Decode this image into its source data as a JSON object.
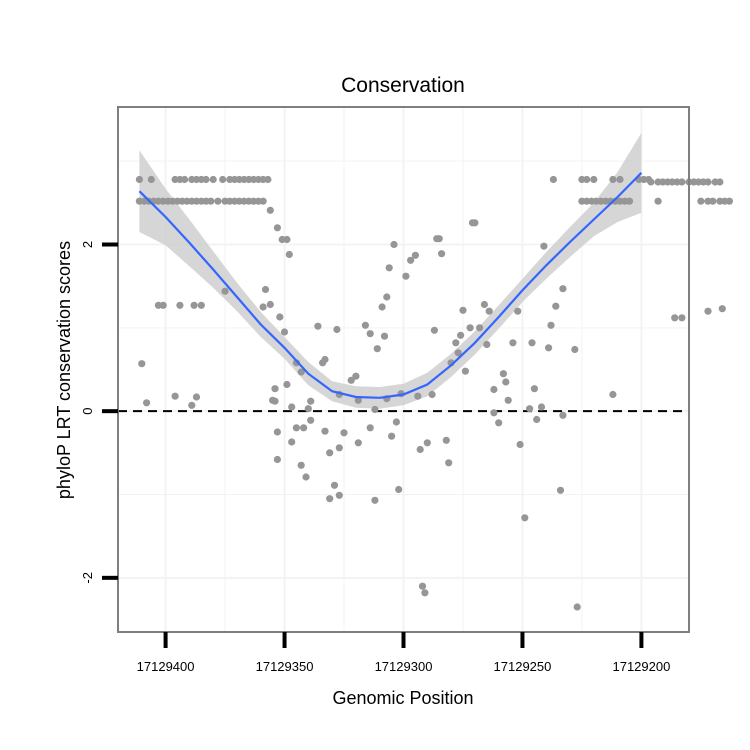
{
  "chart_data": {
    "type": "scatter",
    "title": "Conservation",
    "xlabel": "Genomic Position",
    "ylabel": "phyloP LRT conservation scores",
    "x_reversed": true,
    "xlim": [
      17129420,
      17129180
    ],
    "ylim": [
      -2.65,
      3.65
    ],
    "xticks": [
      17129400,
      17129350,
      17129300,
      17129250,
      17129200
    ],
    "xtick_labels": [
      "17129400",
      "17129350",
      "17129300",
      "17129250",
      "17129200"
    ],
    "yticks": [
      -2,
      0,
      2
    ],
    "ytick_labels": [
      "-2",
      "0",
      "2"
    ],
    "reference_line": {
      "y": 0,
      "style": "dashed"
    },
    "colors": {
      "points": "#969696",
      "smooth": "#3366ff",
      "band": "#cccccc",
      "panel_border": "#7f7f7f",
      "grid": "#f3f3f3"
    },
    "points": [
      [
        17129411,
        2.78
      ],
      [
        17129406,
        2.78
      ],
      [
        17129396,
        2.78
      ],
      [
        17129394,
        2.78
      ],
      [
        17129392,
        2.78
      ],
      [
        17129389,
        2.78
      ],
      [
        17129387,
        2.78
      ],
      [
        17129385,
        2.78
      ],
      [
        17129383,
        2.78
      ],
      [
        17129380,
        2.78
      ],
      [
        17129376,
        2.78
      ],
      [
        17129373,
        2.78
      ],
      [
        17129371,
        2.78
      ],
      [
        17129369,
        2.78
      ],
      [
        17129367,
        2.78
      ],
      [
        17129365,
        2.78
      ],
      [
        17129363,
        2.78
      ],
      [
        17129361,
        2.78
      ],
      [
        17129359,
        2.78
      ],
      [
        17129357,
        2.78
      ],
      [
        17129411,
        2.52
      ],
      [
        17129409,
        2.52
      ],
      [
        17129407,
        2.52
      ],
      [
        17129405,
        2.52
      ],
      [
        17129403,
        2.52
      ],
      [
        17129401,
        2.52
      ],
      [
        17129399,
        2.52
      ],
      [
        17129397,
        2.52
      ],
      [
        17129395,
        2.52
      ],
      [
        17129393,
        2.52
      ],
      [
        17129391,
        2.52
      ],
      [
        17129389,
        2.52
      ],
      [
        17129387,
        2.52
      ],
      [
        17129385,
        2.52
      ],
      [
        17129383,
        2.52
      ],
      [
        17129381,
        2.52
      ],
      [
        17129378,
        2.52
      ],
      [
        17129375,
        2.52
      ],
      [
        17129373,
        2.52
      ],
      [
        17129371,
        2.52
      ],
      [
        17129369,
        2.52
      ],
      [
        17129367,
        2.52
      ],
      [
        17129365,
        2.52
      ],
      [
        17129363,
        2.52
      ],
      [
        17129361,
        2.52
      ],
      [
        17129359,
        2.52
      ],
      [
        17129403,
        1.27
      ],
      [
        17129401,
        1.27
      ],
      [
        17129394,
        1.27
      ],
      [
        17129388,
        1.27
      ],
      [
        17129385,
        1.27
      ],
      [
        17129410,
        0.57
      ],
      [
        17129408,
        0.1
      ],
      [
        17129396,
        0.18
      ],
      [
        17129389,
        0.07
      ],
      [
        17129387,
        0.17
      ],
      [
        17129375,
        1.44
      ],
      [
        17129356,
        2.41
      ],
      [
        17129358,
        1.46
      ],
      [
        17129359,
        1.25
      ],
      [
        17129356,
        1.28
      ],
      [
        17129353,
        2.2
      ],
      [
        17129351,
        2.06
      ],
      [
        17129349,
        2.06
      ],
      [
        17129348,
        1.88
      ],
      [
        17129352,
        1.13
      ],
      [
        17129350,
        0.95
      ],
      [
        17129354,
        0.27
      ],
      [
        17129355,
        0.13
      ],
      [
        17129354,
        0.12
      ],
      [
        17129349,
        0.32
      ],
      [
        17129347,
        0.05
      ],
      [
        17129353,
        -0.25
      ],
      [
        17129353,
        -0.58
      ],
      [
        17129347,
        -0.37
      ],
      [
        17129345,
        0.58
      ],
      [
        17129343,
        0.47
      ],
      [
        17129345,
        -0.2
      ],
      [
        17129342,
        -0.2
      ],
      [
        17129343,
        -0.65
      ],
      [
        17129341,
        -0.79
      ],
      [
        17129340,
        0.03
      ],
      [
        17129339,
        0.12
      ],
      [
        17129339,
        -0.11
      ],
      [
        17129336,
        1.02
      ],
      [
        17129334,
        0.58
      ],
      [
        17129333,
        0.62
      ],
      [
        17129333,
        -0.24
      ],
      [
        17129331,
        -0.5
      ],
      [
        17129331,
        -1.05
      ],
      [
        17129329,
        -0.89
      ],
      [
        17129327,
        -1.01
      ],
      [
        17129327,
        0.2
      ],
      [
        17129327,
        -0.44
      ],
      [
        17129325,
        -0.26
      ],
      [
        17129328,
        0.98
      ],
      [
        17129322,
        0.37
      ],
      [
        17129320,
        0.42
      ],
      [
        17129319,
        0.13
      ],
      [
        17129319,
        -0.38
      ],
      [
        17129316,
        1.03
      ],
      [
        17129314,
        0.93
      ],
      [
        17129314,
        -0.2
      ],
      [
        17129312,
        0.02
      ],
      [
        17129312,
        -1.07
      ],
      [
        17129311,
        0.75
      ],
      [
        17129309,
        1.25
      ],
      [
        17129307,
        1.37
      ],
      [
        17129308,
        0.9
      ],
      [
        17129307,
        0.15
      ],
      [
        17129306,
        1.72
      ],
      [
        17129304,
        2.0
      ],
      [
        17129303,
        -0.13
      ],
      [
        17129305,
        -0.3
      ],
      [
        17129302,
        -0.94
      ],
      [
        17129301,
        0.21
      ],
      [
        17129299,
        1.62
      ],
      [
        17129297,
        1.81
      ],
      [
        17129295,
        1.87
      ],
      [
        17129294,
        0.18
      ],
      [
        17129293,
        -0.46
      ],
      [
        17129292,
        -2.1
      ],
      [
        17129291,
        -2.18
      ],
      [
        17129290,
        -0.38
      ],
      [
        17129288,
        0.2
      ],
      [
        17129287,
        0.97
      ],
      [
        17129286,
        2.07
      ],
      [
        17129285,
        2.07
      ],
      [
        17129284,
        1.89
      ],
      [
        17129282,
        -0.35
      ],
      [
        17129281,
        -0.62
      ],
      [
        17129280,
        0.58
      ],
      [
        17129278,
        0.82
      ],
      [
        17129277,
        0.7
      ],
      [
        17129276,
        0.91
      ],
      [
        17129275,
        1.21
      ],
      [
        17129274,
        0.48
      ],
      [
        17129272,
        1.0
      ],
      [
        17129271,
        2.26
      ],
      [
        17129270,
        2.26
      ],
      [
        17129268,
        1.0
      ],
      [
        17129266,
        1.28
      ],
      [
        17129265,
        0.8
      ],
      [
        17129264,
        1.2
      ],
      [
        17129262,
        -0.02
      ],
      [
        17129262,
        0.26
      ],
      [
        17129260,
        -0.14
      ],
      [
        17129258,
        0.45
      ],
      [
        17129257,
        0.35
      ],
      [
        17129256,
        0.13
      ],
      [
        17129254,
        0.82
      ],
      [
        17129251,
        -0.4
      ],
      [
        17129252,
        1.2
      ],
      [
        17129249,
        -1.28
      ],
      [
        17129247,
        0.03
      ],
      [
        17129246,
        0.82
      ],
      [
        17129245,
        0.27
      ],
      [
        17129244,
        -0.1
      ],
      [
        17129242,
        0.05
      ],
      [
        17129241,
        1.98
      ],
      [
        17129239,
        0.76
      ],
      [
        17129238,
        1.03
      ],
      [
        17129237,
        2.78
      ],
      [
        17129236,
        1.26
      ],
      [
        17129234,
        -0.95
      ],
      [
        17129233,
        -0.05
      ],
      [
        17129233,
        1.47
      ],
      [
        17129228,
        0.74
      ],
      [
        17129227,
        -2.35
      ],
      [
        17129225,
        2.78
      ],
      [
        17129223,
        2.78
      ],
      [
        17129220,
        2.78
      ],
      [
        17129212,
        2.78
      ],
      [
        17129209,
        2.78
      ],
      [
        17129201,
        2.78
      ],
      [
        17129199,
        2.78
      ],
      [
        17129197,
        2.78
      ],
      [
        17129225,
        2.52
      ],
      [
        17129223,
        2.52
      ],
      [
        17129221,
        2.52
      ],
      [
        17129219,
        2.52
      ],
      [
        17129217,
        2.52
      ],
      [
        17129215,
        2.52
      ],
      [
        17129213,
        2.52
      ],
      [
        17129211,
        2.52
      ],
      [
        17129209,
        2.52
      ],
      [
        17129207,
        2.52
      ],
      [
        17129205,
        2.52
      ],
      [
        17129193,
        2.52
      ],
      [
        17129196,
        2.75
      ],
      [
        17129193,
        2.75
      ],
      [
        17129191,
        2.75
      ],
      [
        17129189,
        2.75
      ],
      [
        17129187,
        2.75
      ],
      [
        17129185,
        2.75
      ],
      [
        17129183,
        2.75
      ],
      [
        17129180,
        2.75
      ],
      [
        17129178,
        2.75
      ],
      [
        17129176,
        2.75
      ],
      [
        17129174,
        2.75
      ],
      [
        17129172,
        2.75
      ],
      [
        17129169,
        2.75
      ],
      [
        17129167,
        2.75
      ],
      [
        17129175,
        2.52
      ],
      [
        17129172,
        2.52
      ],
      [
        17129170,
        2.52
      ],
      [
        17129167,
        2.52
      ],
      [
        17129165,
        2.52
      ],
      [
        17129163,
        2.52
      ],
      [
        17129212,
        0.2
      ],
      [
        17129186,
        1.12
      ],
      [
        17129183,
        1.12
      ],
      [
        17129172,
        1.2
      ],
      [
        17129166,
        1.23
      ]
    ],
    "smooth": [
      [
        17129411,
        2.64
      ],
      [
        17129400,
        2.33
      ],
      [
        17129390,
        2.02
      ],
      [
        17129380,
        1.7
      ],
      [
        17129370,
        1.37
      ],
      [
        17129360,
        1.04
      ],
      [
        17129350,
        0.76
      ],
      [
        17129340,
        0.45
      ],
      [
        17129330,
        0.24
      ],
      [
        17129320,
        0.17
      ],
      [
        17129310,
        0.16
      ],
      [
        17129300,
        0.2
      ],
      [
        17129290,
        0.32
      ],
      [
        17129280,
        0.55
      ],
      [
        17129270,
        0.82
      ],
      [
        17129260,
        1.13
      ],
      [
        17129250,
        1.45
      ],
      [
        17129240,
        1.75
      ],
      [
        17129230,
        2.03
      ],
      [
        17129220,
        2.3
      ],
      [
        17129210,
        2.57
      ],
      [
        17129200,
        2.86
      ]
    ],
    "band_upper": [
      3.13,
      2.67,
      2.3,
      1.92,
      1.54,
      1.19,
      0.89,
      0.59,
      0.36,
      0.3,
      0.29,
      0.33,
      0.46,
      0.69,
      0.96,
      1.27,
      1.59,
      1.91,
      2.21,
      2.5,
      2.87,
      3.34
    ],
    "band_lower": [
      2.15,
      1.99,
      1.74,
      1.48,
      1.2,
      0.89,
      0.63,
      0.31,
      0.12,
      0.04,
      0.03,
      0.07,
      0.18,
      0.41,
      0.68,
      0.99,
      1.31,
      1.59,
      1.85,
      2.1,
      2.27,
      2.38
    ]
  }
}
